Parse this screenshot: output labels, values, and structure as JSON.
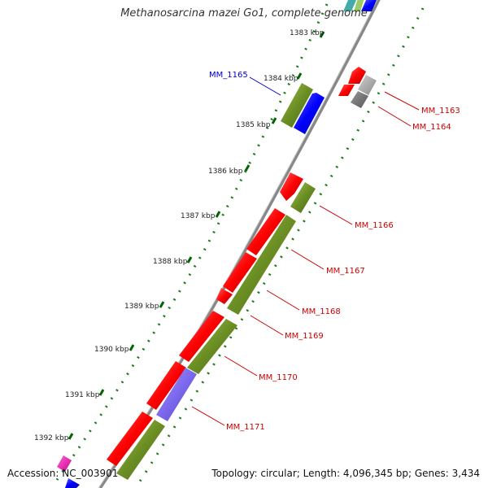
{
  "title": "Methanosarcina mazei Go1, complete genome",
  "footer": {
    "accession": "Accession: NC_003901",
    "summary": "Topology: circular; Length: 4,096,345 bp; Genes: 3,434"
  },
  "ticks": [
    {
      "label": "1383 kbp"
    },
    {
      "label": "1384 kbp"
    },
    {
      "label": "1385 kbp"
    },
    {
      "label": "1386 kbp"
    },
    {
      "label": "1387 kbp"
    },
    {
      "label": "1388 kbp"
    },
    {
      "label": "1389 kbp"
    },
    {
      "label": "1390 kbp"
    },
    {
      "label": "1391 kbp"
    },
    {
      "label": "1392 kbp"
    }
  ],
  "gene_labels": [
    {
      "name": "MM_1163",
      "color": "#cc0000"
    },
    {
      "name": "MM_1164",
      "color": "#cc0000"
    },
    {
      "name": "MM_1165",
      "color": "#0000cc"
    },
    {
      "name": "MM_1166",
      "color": "#cc0000"
    },
    {
      "name": "MM_1167",
      "color": "#cc0000"
    },
    {
      "name": "MM_1168",
      "color": "#cc0000"
    },
    {
      "name": "MM_1169",
      "color": "#cc0000"
    },
    {
      "name": "MM_1170",
      "color": "#cc0000"
    },
    {
      "name": "MM_1171",
      "color": "#cc0000"
    }
  ],
  "colors": {
    "backbone": "#888888",
    "cds_red": "#ff0000",
    "cds_olive": "#6b8e23",
    "cds_blue": "#0000ff",
    "cds_purple": "#7b68ee",
    "cds_gray": "#888888",
    "tick_green": "#006400"
  }
}
